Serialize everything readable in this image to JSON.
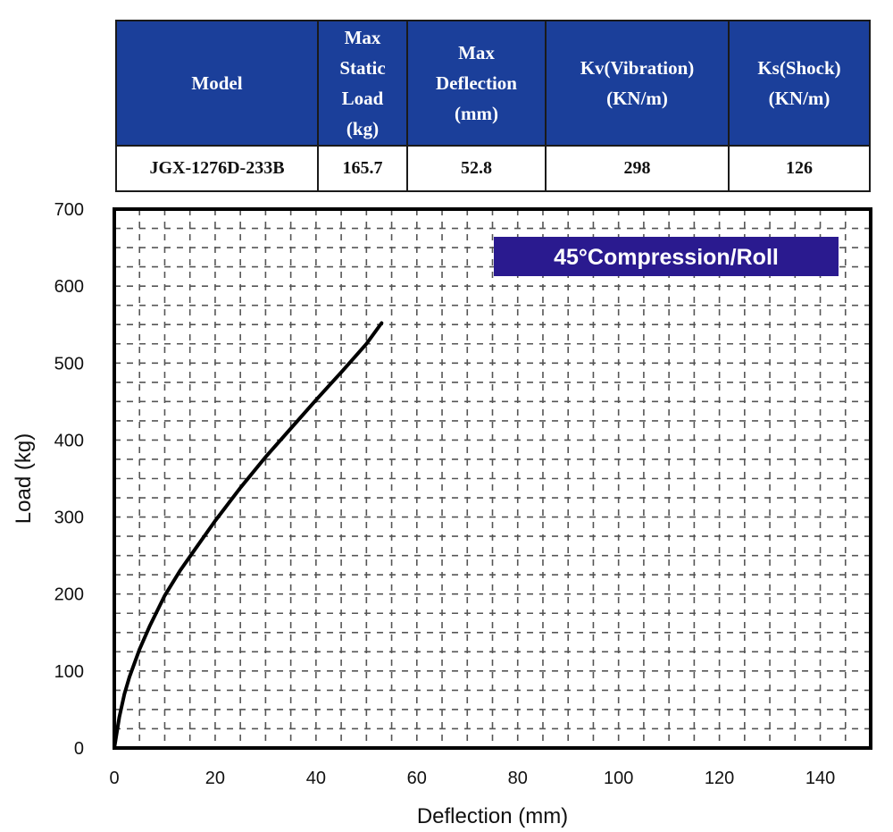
{
  "table": {
    "headers": [
      [
        "Max",
        "Static",
        "Load",
        "(kg)"
      ],
      [
        "Max",
        "Deflection",
        "(mm)"
      ],
      [
        "Kv(Vibration)",
        "(KN/m)"
      ],
      [
        "Ks(Shock)",
        "(KN/m)"
      ]
    ],
    "model_header": "Model",
    "row": {
      "model": "JGX-1276D-233B",
      "max_static_load": "165.7",
      "max_deflection": "52.8",
      "kv": "298",
      "ks": "126"
    },
    "header_color": "#1b3f9a"
  },
  "chart_data": {
    "type": "line",
    "title": "45°Compression/Roll",
    "xlabel": "Deflection (mm)",
    "ylabel": "Load (kg)",
    "xlim": [
      0,
      150
    ],
    "ylim": [
      0,
      700
    ],
    "xticks": [
      0,
      20,
      40,
      60,
      80,
      100,
      120,
      140
    ],
    "yticks": [
      0,
      100,
      200,
      300,
      400,
      500,
      600,
      700
    ],
    "grid": true,
    "series": [
      {
        "x": [
          0,
          1,
          2,
          3,
          5,
          7,
          10,
          13,
          16,
          20,
          25,
          30,
          35,
          40,
          45,
          50,
          53
        ],
        "y": [
          0,
          40,
          70,
          92,
          128,
          158,
          198,
          230,
          258,
          295,
          338,
          378,
          415,
          452,
          488,
          525,
          552
        ],
        "color": "#000000"
      }
    ],
    "title_box_color": "#2a1a8f"
  }
}
